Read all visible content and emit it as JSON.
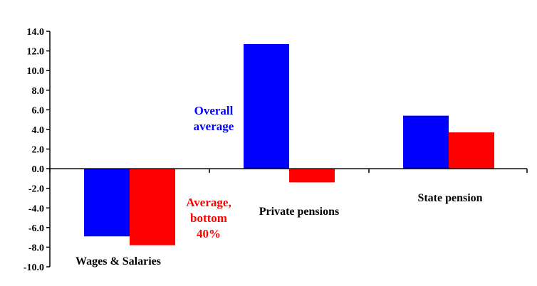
{
  "chart_data": {
    "type": "bar",
    "categories": [
      "Wages & Salaries",
      "Private pensions",
      "State pension"
    ],
    "series": [
      {
        "values": [
          -6.9,
          12.7,
          5.4
        ],
        "color": "#0000ff"
      },
      {
        "values": [
          -7.8,
          -1.4,
          3.7
        ],
        "color": "#ff0000"
      }
    ],
    "ylim": [
      -10.0,
      14.0
    ],
    "yticks": [
      "14.0",
      "12.0",
      "10.0",
      "8.0",
      "6.0",
      "4.0",
      "2.0",
      "0.0",
      "-2.0",
      "-4.0",
      "-6.0",
      "-8.0",
      "-10.0"
    ],
    "annotations": [
      {
        "lines": [
          "Overall",
          "average"
        ],
        "color": "#0000ff"
      },
      {
        "lines": [
          "Average,",
          "bottom",
          "40%"
        ],
        "color": "#ff0000"
      }
    ],
    "grid": false,
    "legend": "none"
  }
}
